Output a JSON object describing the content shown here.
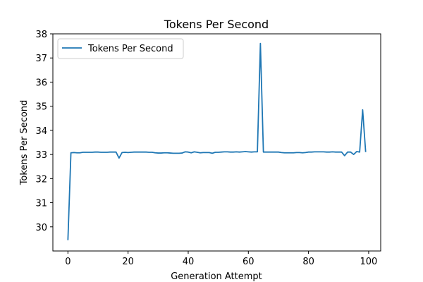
{
  "chart_data": {
    "type": "line",
    "title": "Tokens Per Second",
    "xlabel": "Generation Attempt",
    "ylabel": "Tokens Per Second",
    "xlim": [
      -5,
      104
    ],
    "ylim": [
      29.0,
      38.0
    ],
    "x_ticks": [
      0,
      20,
      40,
      60,
      80,
      100
    ],
    "y_ticks": [
      30,
      31,
      32,
      33,
      34,
      35,
      36,
      37,
      38
    ],
    "grid": false,
    "legend_position": "top-left",
    "series": [
      {
        "name": "Tokens Per Second",
        "color": "#1f77b4",
        "x": [
          0,
          1,
          2,
          3,
          4,
          5,
          6,
          7,
          8,
          9,
          10,
          11,
          12,
          13,
          14,
          15,
          16,
          17,
          18,
          19,
          20,
          21,
          22,
          23,
          24,
          25,
          26,
          27,
          28,
          29,
          30,
          31,
          32,
          33,
          34,
          35,
          36,
          37,
          38,
          39,
          40,
          41,
          42,
          43,
          44,
          45,
          46,
          47,
          48,
          49,
          50,
          51,
          52,
          53,
          54,
          55,
          56,
          57,
          58,
          59,
          60,
          61,
          62,
          63,
          64,
          65,
          66,
          67,
          68,
          69,
          70,
          71,
          72,
          73,
          74,
          75,
          76,
          77,
          78,
          79,
          80,
          81,
          82,
          83,
          84,
          85,
          86,
          87,
          88,
          89,
          90,
          91,
          92,
          93,
          94,
          95,
          96,
          97,
          98,
          99
        ],
        "y": [
          29.45,
          33.07,
          33.08,
          33.07,
          33.07,
          33.09,
          33.09,
          33.09,
          33.09,
          33.1,
          33.1,
          33.09,
          33.09,
          33.09,
          33.1,
          33.1,
          33.1,
          32.85,
          33.08,
          33.09,
          33.08,
          33.09,
          33.1,
          33.1,
          33.1,
          33.1,
          33.1,
          33.09,
          33.09,
          33.07,
          33.06,
          33.06,
          33.07,
          33.07,
          33.06,
          33.05,
          33.05,
          33.05,
          33.06,
          33.11,
          33.1,
          33.07,
          33.11,
          33.09,
          33.07,
          33.08,
          33.08,
          33.08,
          33.05,
          33.09,
          33.09,
          33.1,
          33.11,
          33.11,
          33.1,
          33.1,
          33.11,
          33.1,
          33.11,
          33.12,
          33.11,
          33.1,
          33.11,
          33.11,
          37.6,
          33.1,
          33.1,
          33.1,
          33.1,
          33.1,
          33.1,
          33.08,
          33.07,
          33.07,
          33.07,
          33.07,
          33.08,
          33.08,
          33.07,
          33.08,
          33.1,
          33.1,
          33.11,
          33.11,
          33.11,
          33.11,
          33.1,
          33.1,
          33.11,
          33.1,
          33.1,
          33.1,
          32.95,
          33.1,
          33.1,
          33.0,
          33.12,
          33.1,
          34.85,
          33.1
        ]
      }
    ]
  }
}
